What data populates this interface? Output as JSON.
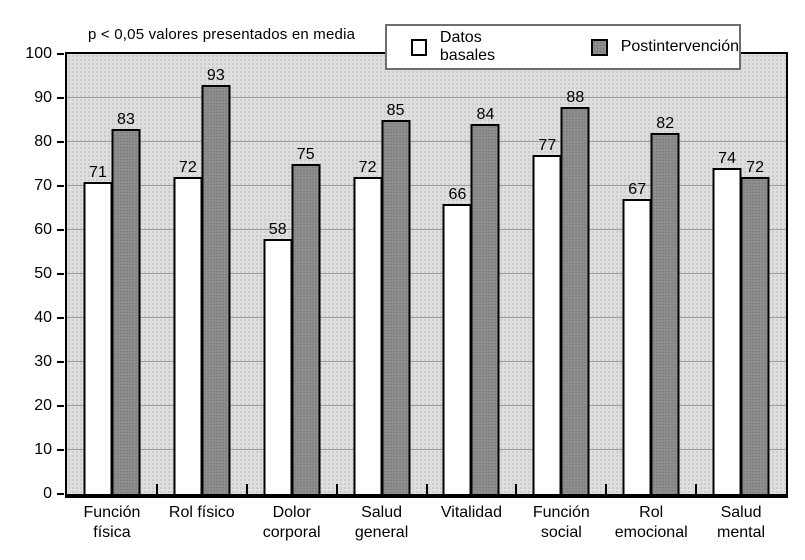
{
  "figure": {
    "annotation": "p < 0,05 valores presentados en media"
  },
  "legend": {
    "items": [
      {
        "label": "Datos basales",
        "series": "basal"
      },
      {
        "label": "Postintervención",
        "series": "post"
      }
    ]
  },
  "chart_data": {
    "type": "bar",
    "title": "",
    "annotation": "p < 0,05 valores presentados en media",
    "categories": [
      "Función física",
      "Rol físico",
      "Dolor corporal",
      "Salud general",
      "Vitalidad",
      "Función social",
      "Rol emocional",
      "Salud mental"
    ],
    "category_label_lines": [
      [
        "Función",
        "física"
      ],
      [
        "Rol físico"
      ],
      [
        "Dolor",
        "corporal"
      ],
      [
        "Salud",
        "general"
      ],
      [
        "Vitalidad"
      ],
      [
        "Función",
        "social"
      ],
      [
        "Rol",
        "emocional"
      ],
      [
        "Salud",
        "mental"
      ]
    ],
    "series": [
      {
        "name": "Datos basales",
        "key": "basal",
        "values": [
          71,
          72,
          58,
          72,
          66,
          77,
          67,
          74
        ]
      },
      {
        "name": "Postintervención",
        "key": "post",
        "values": [
          83,
          93,
          75,
          85,
          84,
          88,
          82,
          72
        ]
      }
    ],
    "ylim": [
      0,
      100
    ],
    "yticks": [
      0,
      10,
      20,
      30,
      40,
      50,
      60,
      70,
      80,
      90,
      100
    ],
    "grid": true,
    "grid_values": [
      10,
      20,
      30,
      40,
      50,
      60,
      70,
      80,
      90
    ],
    "legend_position": "top-right",
    "value_labels": true
  },
  "colors": {
    "plot_bg": "#dedede",
    "plot_bg_dot": "#b4b4b4",
    "bar_basal": "#ffffff",
    "bar_post": "#8f8f8f",
    "bar_post_dot": "#767676",
    "gridline": "#9c9c9c",
    "axis": "#000000",
    "legend_border": "#6e6e6e"
  }
}
